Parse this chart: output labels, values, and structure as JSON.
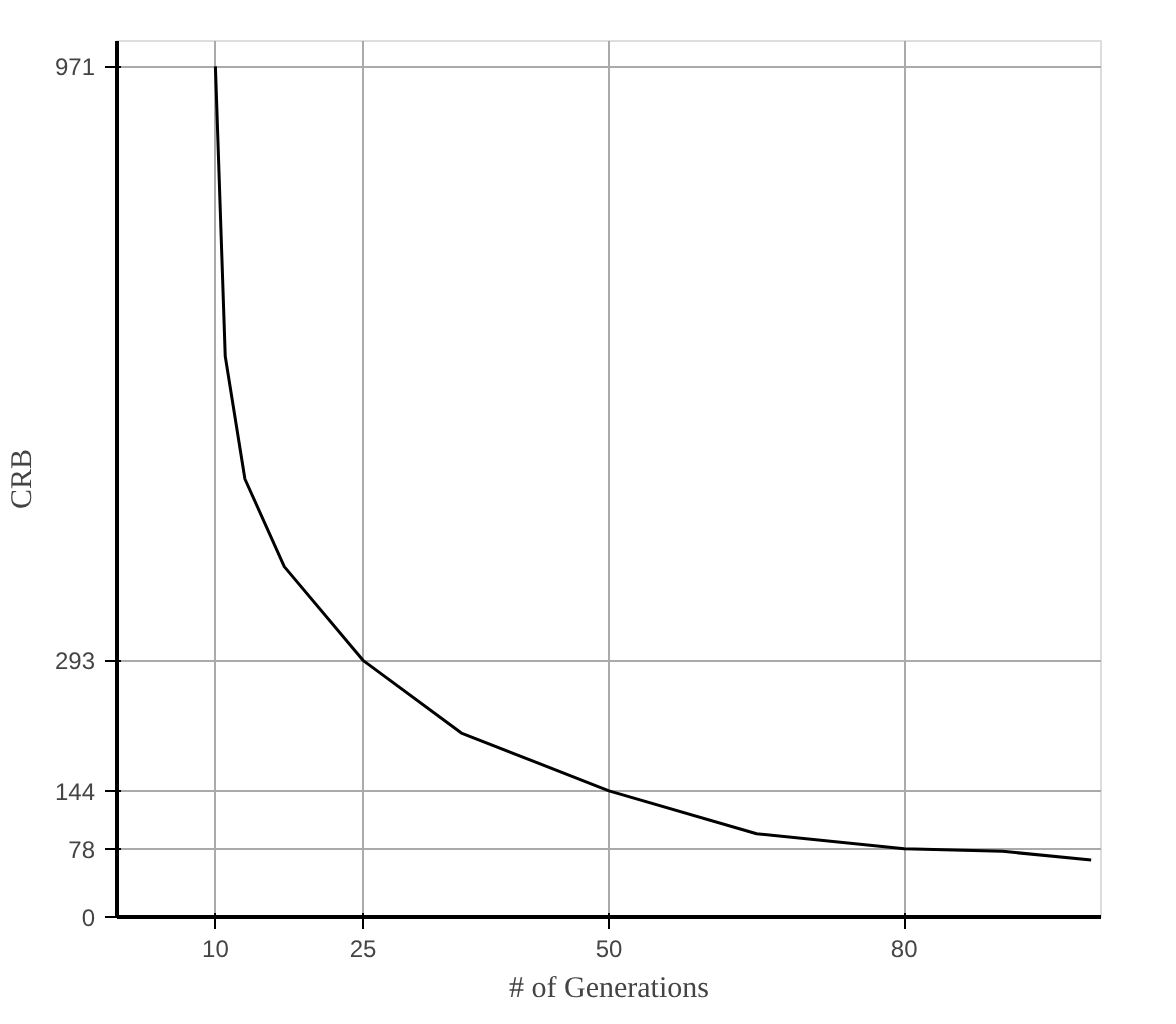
{
  "chart_data": {
    "type": "line",
    "xlabel": "# of Generations",
    "ylabel": "CRB",
    "x": [
      10,
      11,
      13,
      17,
      25,
      35,
      50,
      65,
      80,
      90,
      99
    ],
    "values": [
      971,
      640,
      500,
      400,
      293,
      210,
      144,
      95,
      78,
      75,
      65
    ],
    "color": "#000000",
    "xlim": [
      0,
      100
    ],
    "ylim": [
      0,
      1000
    ],
    "xticks": [
      10,
      25,
      50,
      80
    ],
    "yticks": [
      0,
      78,
      144,
      293,
      971
    ],
    "grid": true,
    "marker": "none",
    "line_style": "solid"
  }
}
